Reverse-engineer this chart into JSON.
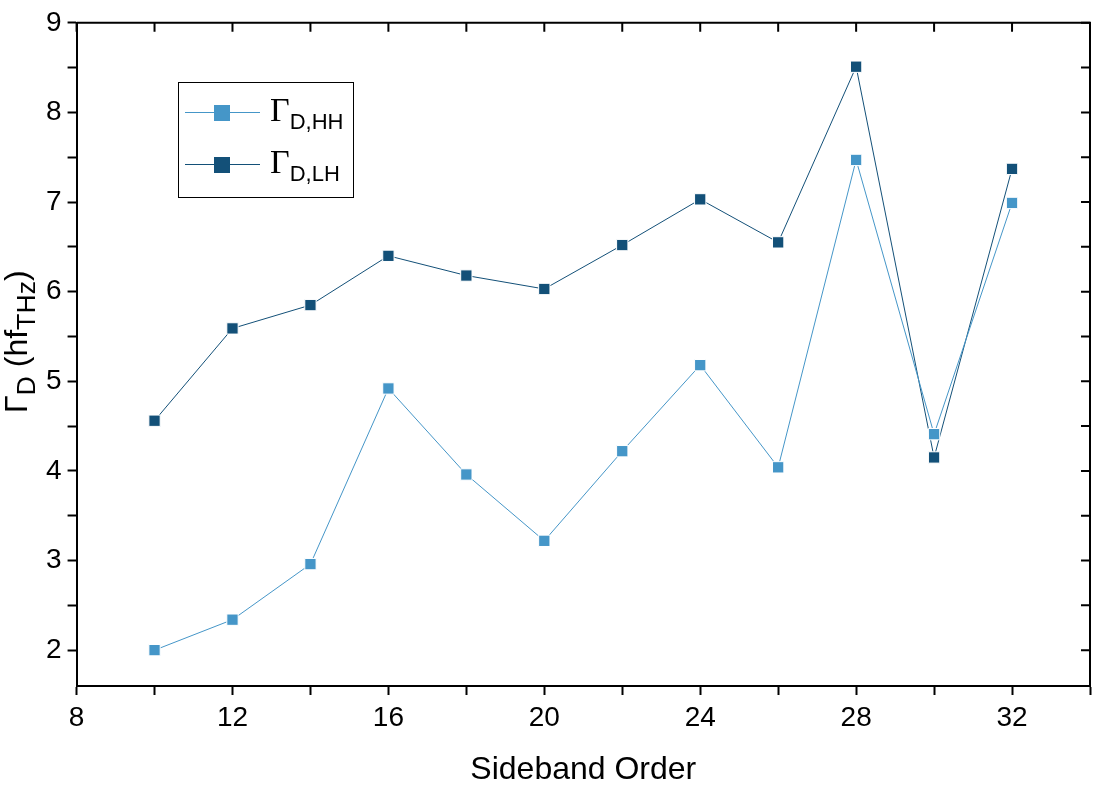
{
  "chart_data": {
    "type": "line",
    "xlabel": "Sideband Order",
    "ylabel": "Γ$_{D}$ (hf$_{THz}$)",
    "x": [
      10,
      12,
      14,
      16,
      18,
      20,
      22,
      24,
      26,
      28,
      30,
      32
    ],
    "series": [
      {
        "name": "Γ$_{D,HH}$",
        "color": "#4596c8",
        "values": [
          2.0,
          2.34,
          2.96,
          4.92,
          3.96,
          3.22,
          4.22,
          5.18,
          4.04,
          7.47,
          4.41,
          6.99
        ]
      },
      {
        "name": "Γ$_{D,LH}$",
        "color": "#135078",
        "values": [
          4.56,
          5.59,
          5.85,
          6.4,
          6.18,
          6.03,
          6.52,
          7.03,
          6.55,
          8.51,
          4.15,
          7.37
        ]
      }
    ],
    "xlim": [
      8,
      34
    ],
    "xticks": [
      8,
      {
        "value": 10,
        "label": null
      },
      12,
      {
        "value": 14,
        "label": null
      },
      16,
      {
        "value": 18,
        "label": null
      },
      20,
      {
        "value": 22,
        "label": null
      },
      24,
      {
        "value": 26,
        "label": null
      },
      28,
      {
        "value": 30,
        "label": null
      },
      32,
      {
        "value": 34,
        "label": null
      }
    ],
    "ylim": [
      1.6,
      9
    ],
    "yticks": [
      2,
      {
        "value": 2.5,
        "label": null
      },
      3,
      {
        "value": 3.5,
        "label": null
      },
      4,
      {
        "value": 4.5,
        "label": null
      },
      5,
      {
        "value": 5.5,
        "label": null
      },
      6,
      {
        "value": 6.5,
        "label": null
      },
      7,
      {
        "value": 7.5,
        "label": null
      },
      8,
      {
        "value": 8.5,
        "label": null
      },
      9
    ],
    "grid": false,
    "legend": "top left",
    "marker": "square",
    "line_style": "solid"
  }
}
